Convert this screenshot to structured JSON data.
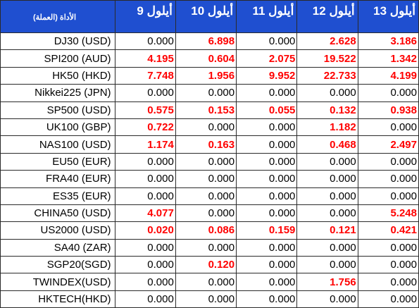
{
  "header": {
    "instrument": "الأداة (العملة)",
    "days": [
      "أيلول 9",
      "أيلول 10",
      "أيلول 11",
      "أيلول 12",
      "أيلول 13"
    ]
  },
  "rows": [
    {
      "name": "DJ30 (USD)",
      "values": [
        "0.000",
        "6.898",
        "0.000",
        "2.628",
        "3.186"
      ],
      "highlight": [
        false,
        true,
        false,
        true,
        true
      ]
    },
    {
      "name": "SPI200 (AUD)",
      "values": [
        "4.195",
        "0.604",
        "2.075",
        "19.522",
        "1.342"
      ],
      "highlight": [
        true,
        true,
        true,
        true,
        true
      ]
    },
    {
      "name": "HK50 (HKD)",
      "values": [
        "7.748",
        "1.956",
        "9.952",
        "22.733",
        "4.199"
      ],
      "highlight": [
        true,
        true,
        true,
        true,
        true
      ]
    },
    {
      "name": "Nikkei225 (JPN)",
      "values": [
        "0.000",
        "0.000",
        "0.000",
        "0.000",
        "0.000"
      ],
      "highlight": [
        false,
        false,
        false,
        false,
        false
      ]
    },
    {
      "name": "SP500 (USD)",
      "values": [
        "0.575",
        "0.153",
        "0.055",
        "0.132",
        "0.938"
      ],
      "highlight": [
        true,
        true,
        true,
        true,
        true
      ]
    },
    {
      "name": "UK100  (GBP)",
      "values": [
        "0.722",
        "0.000",
        "0.000",
        "1.182",
        "0.000"
      ],
      "highlight": [
        true,
        false,
        false,
        true,
        false
      ]
    },
    {
      "name": "NAS100 (USD)",
      "values": [
        "1.174",
        "0.163",
        "0.000",
        "0.468",
        "2.497"
      ],
      "highlight": [
        true,
        true,
        false,
        true,
        true
      ]
    },
    {
      "name": "EU50  (EUR)",
      "values": [
        "0.000",
        "0.000",
        "0.000",
        "0.000",
        "0.000"
      ],
      "highlight": [
        false,
        false,
        false,
        false,
        false
      ]
    },
    {
      "name": "FRA40  (EUR)",
      "values": [
        "0.000",
        "0.000",
        "0.000",
        "0.000",
        "0.000"
      ],
      "highlight": [
        false,
        false,
        false,
        false,
        false
      ]
    },
    {
      "name": "ES35  (EUR)",
      "values": [
        "0.000",
        "0.000",
        "0.000",
        "0.000",
        "0.000"
      ],
      "highlight": [
        false,
        false,
        false,
        false,
        false
      ]
    },
    {
      "name": "CHINA50 (USD)",
      "values": [
        "4.077",
        "0.000",
        "0.000",
        "0.000",
        "5.248"
      ],
      "highlight": [
        true,
        false,
        false,
        false,
        true
      ]
    },
    {
      "name": "US2000 (USD)",
      "values": [
        "0.020",
        "0.086",
        "0.159",
        "0.121",
        "0.421"
      ],
      "highlight": [
        true,
        true,
        true,
        true,
        true
      ]
    },
    {
      "name": "SA40 (ZAR)",
      "values": [
        "0.000",
        "0.000",
        "0.000",
        "0.000",
        "0.000"
      ],
      "highlight": [
        false,
        false,
        false,
        false,
        false
      ]
    },
    {
      "name": "SGP20(SGD)",
      "values": [
        "0.000",
        "0.120",
        "0.000",
        "0.000",
        "0.000"
      ],
      "highlight": [
        false,
        true,
        false,
        false,
        false
      ]
    },
    {
      "name": "TWINDEX(USD)",
      "values": [
        "0.000",
        "0.000",
        "0.000",
        "1.756",
        "0.000"
      ],
      "highlight": [
        false,
        false,
        false,
        true,
        false
      ]
    },
    {
      "name": "HKTECH(HKD)",
      "values": [
        "0.000",
        "0.000",
        "0.000",
        "0.000",
        "0.000"
      ],
      "highlight": [
        false,
        false,
        false,
        false,
        false
      ]
    }
  ],
  "colors": {
    "header_bg": "#1f4fd0",
    "header_text": "#ffffff",
    "highlight_value": "#ff0000",
    "grid": "#2a2a2a"
  }
}
